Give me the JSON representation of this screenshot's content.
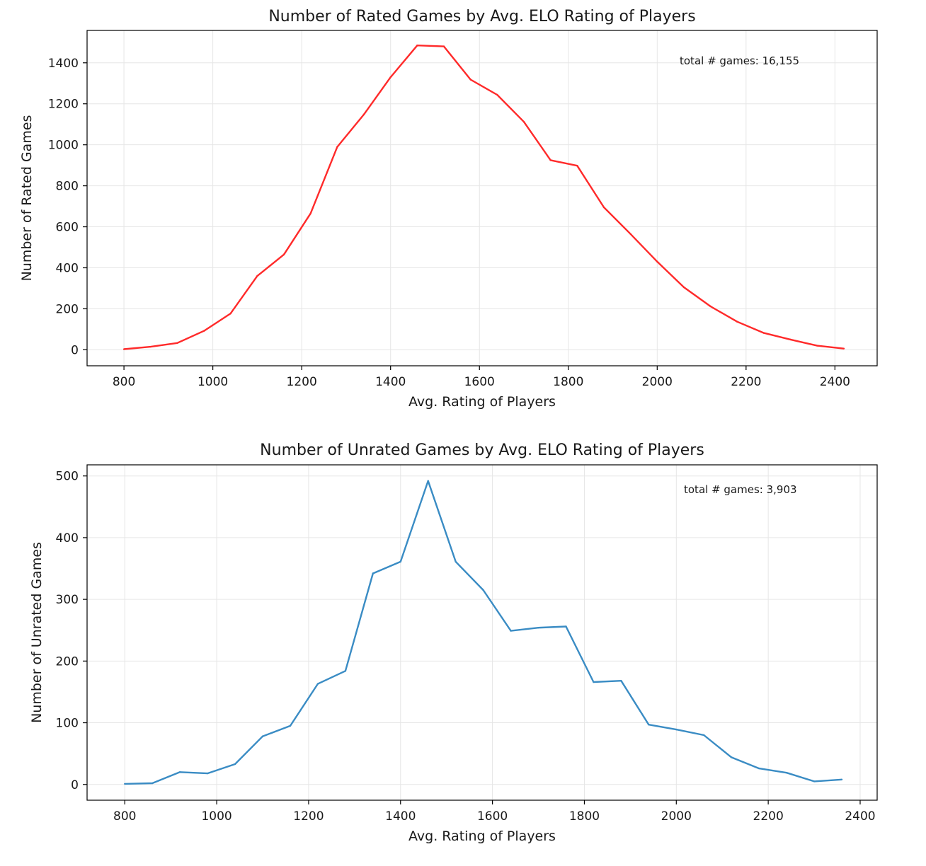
{
  "chart_data": [
    {
      "type": "line",
      "title": "Number of Rated Games by Avg. ELO Rating of Players",
      "xlabel": "Avg. Rating of Players",
      "ylabel": "Number of Rated Games",
      "annotation": "total # games: 16,155",
      "xlim": [
        717,
        2495
      ],
      "ylim": [
        -78,
        1558
      ],
      "xticks": [
        800,
        1000,
        1200,
        1400,
        1600,
        1800,
        2000,
        2200,
        2400
      ],
      "yticks": [
        0,
        200,
        400,
        600,
        800,
        1000,
        1200,
        1400
      ],
      "grid": true,
      "color": "#ff2a2a",
      "x": [
        800,
        860,
        920,
        980,
        1040,
        1100,
        1160,
        1220,
        1280,
        1340,
        1400,
        1460,
        1520,
        1580,
        1640,
        1700,
        1760,
        1820,
        1880,
        1940,
        2000,
        2060,
        2120,
        2180,
        2240,
        2300,
        2360,
        2420
      ],
      "y": [
        3,
        15,
        33,
        92,
        177,
        360,
        465,
        665,
        990,
        1148,
        1330,
        1485,
        1480,
        1318,
        1244,
        1112,
        925,
        898,
        695,
        565,
        430,
        305,
        212,
        137,
        82,
        50,
        20,
        6
      ]
    },
    {
      "type": "line",
      "title": "Number of Unrated Games by Avg. ELO Rating of Players",
      "xlabel": "Avg. Rating of Players",
      "ylabel": "Number of Unrated Games",
      "annotation": "total # games: 3,903",
      "xlim": [
        718,
        2437
      ],
      "ylim": [
        -25.5,
        518
      ],
      "xticks": [
        800,
        1000,
        1200,
        1400,
        1600,
        1800,
        2000,
        2200,
        2400
      ],
      "yticks": [
        0,
        100,
        200,
        300,
        400,
        500
      ],
      "grid": true,
      "color": "#3a8cc4",
      "x": [
        800,
        860,
        920,
        980,
        1040,
        1100,
        1160,
        1220,
        1280,
        1340,
        1400,
        1460,
        1520,
        1580,
        1640,
        1700,
        1760,
        1820,
        1880,
        1940,
        2000,
        2060,
        2120,
        2180,
        2240,
        2300,
        2360
      ],
      "y": [
        1,
        2,
        20,
        18,
        33,
        78,
        95,
        163,
        184,
        342,
        361,
        492,
        361,
        315,
        249,
        254,
        256,
        166,
        168,
        97,
        89,
        80,
        44,
        26,
        19,
        5,
        8
      ]
    }
  ]
}
